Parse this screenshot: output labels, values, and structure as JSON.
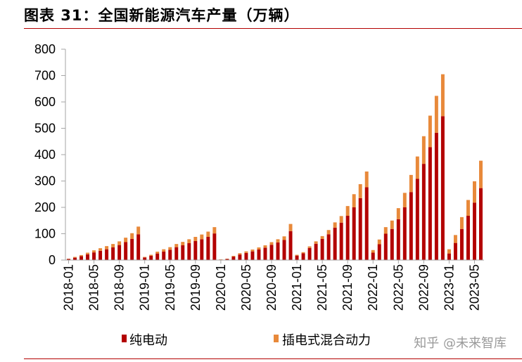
{
  "header": {
    "title": "图表 31：全国新能源汽车产量（万辆）"
  },
  "watermark": "知乎 @未来智库",
  "colors": {
    "bev": "#b30000",
    "phev": "#e8893a",
    "rule": "#b30000",
    "axis": "#a6a6a6"
  },
  "chart_data": {
    "type": "bar",
    "stacked": true,
    "title": "全国新能源汽车产量（万辆）",
    "unit": "万辆",
    "ylim": [
      0,
      800
    ],
    "yticks": [
      0,
      100,
      200,
      300,
      400,
      500,
      600,
      700,
      800
    ],
    "xtick_labels": [
      "2018-01",
      "2018-05",
      "2018-09",
      "2019-01",
      "2019-05",
      "2019-09",
      "2020-01",
      "2020-05",
      "2020-09",
      "2021-01",
      "2021-05",
      "2021-09",
      "2022-01",
      "2022-05",
      "2022-09",
      "2023-01",
      "2023-05"
    ],
    "categories": [
      "2018-01",
      "2018-02",
      "2018-03",
      "2018-04",
      "2018-05",
      "2018-06",
      "2018-07",
      "2018-08",
      "2018-09",
      "2018-10",
      "2018-11",
      "2018-12",
      "2019-01",
      "2019-02",
      "2019-03",
      "2019-04",
      "2019-05",
      "2019-06",
      "2019-07",
      "2019-08",
      "2019-09",
      "2019-10",
      "2019-11",
      "2019-12",
      "2020-01",
      "2020-02",
      "2020-03",
      "2020-04",
      "2020-05",
      "2020-06",
      "2020-07",
      "2020-08",
      "2020-09",
      "2020-10",
      "2020-11",
      "2020-12",
      "2021-01",
      "2021-02",
      "2021-03",
      "2021-04",
      "2021-05",
      "2021-06",
      "2021-07",
      "2021-08",
      "2021-09",
      "2021-10",
      "2021-11",
      "2021-12",
      "2022-01",
      "2022-02",
      "2022-03",
      "2022-04",
      "2022-05",
      "2022-06",
      "2022-07",
      "2022-08",
      "2022-09",
      "2022-10",
      "2022-11",
      "2022-12",
      "2023-01",
      "2023-02",
      "2023-03",
      "2023-04",
      "2023-05",
      "2023-06"
    ],
    "series": [
      {
        "name": "纯电动",
        "values": [
          4,
          9,
          15,
          22,
          29,
          35,
          41,
          48,
          57,
          68,
          80,
          98,
          10,
          16,
          25,
          32,
          39,
          49,
          56,
          64,
          72,
          79,
          88,
          101,
          2,
          4,
          13,
          21,
          27,
          33,
          40,
          47,
          58,
          67,
          76,
          110,
          17,
          26,
          46,
          62,
          80,
          98,
          123,
          142,
          168,
          200,
          235,
          276,
          28,
          60,
          100,
          118,
          155,
          200,
          258,
          308,
          365,
          428,
          483,
          546,
          25,
          65,
          118,
          168,
          218,
          273
        ]
      },
      {
        "name": "插电式混合动力",
        "values": [
          1,
          3,
          4,
          6,
          8,
          10,
          12,
          13,
          14,
          17,
          22,
          29,
          2,
          4,
          7,
          9,
          10,
          12,
          13,
          15,
          16,
          18,
          20,
          24,
          1,
          1,
          3,
          5,
          6,
          7,
          8,
          9,
          10,
          12,
          14,
          27,
          3,
          4,
          6,
          9,
          11,
          16,
          20,
          25,
          37,
          50,
          53,
          60,
          10,
          18,
          25,
          32,
          42,
          55,
          65,
          85,
          105,
          120,
          140,
          159,
          16,
          30,
          45,
          60,
          81,
          104
        ]
      }
    ],
    "legend": [
      "纯电动",
      "插电式混合动力"
    ],
    "legend_position": "bottom"
  }
}
